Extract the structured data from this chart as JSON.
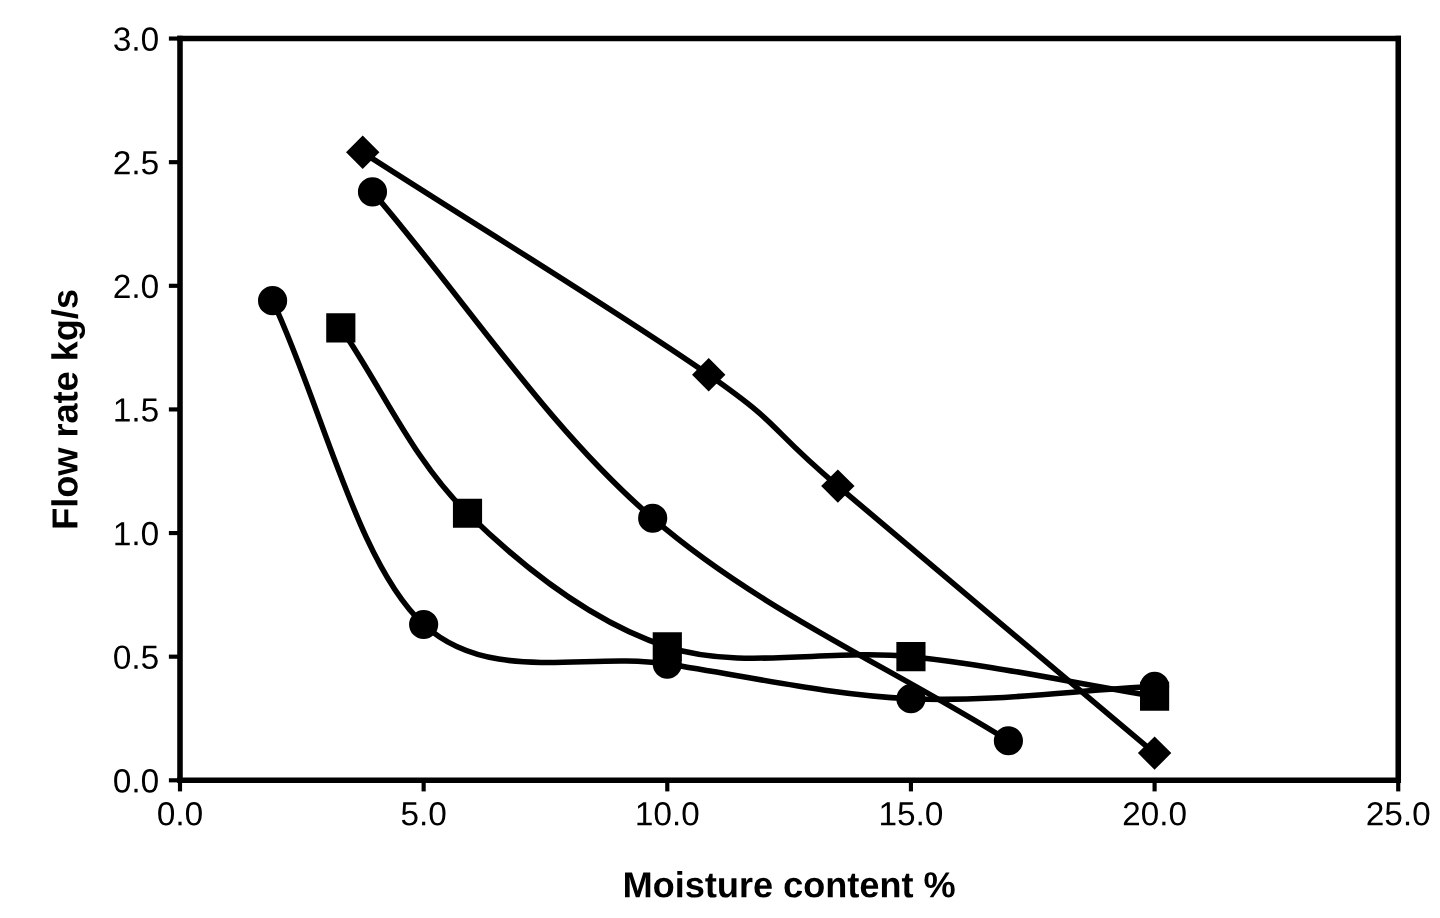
{
  "chart_data": {
    "type": "line",
    "xlabel": "Moisture content %",
    "ylabel": "Flow rate kg/s",
    "xlim": [
      0,
      25
    ],
    "ylim": [
      0,
      3
    ],
    "xticks": [
      {
        "value": 0,
        "label": "0.0"
      },
      {
        "value": 5,
        "label": "5.0"
      },
      {
        "value": 10,
        "label": "10.0"
      },
      {
        "value": 15,
        "label": "15.0"
      },
      {
        "value": 20,
        "label": "20.0"
      },
      {
        "value": 25,
        "label": "25.0"
      }
    ],
    "yticks": [
      {
        "value": 0,
        "label": "0.0"
      },
      {
        "value": 0.5,
        "label": "0.5"
      },
      {
        "value": 1,
        "label": "1.0"
      },
      {
        "value": 1.5,
        "label": "1.5"
      },
      {
        "value": 2,
        "label": "2.0"
      },
      {
        "value": 2.5,
        "label": "2.5"
      },
      {
        "value": 3,
        "label": "3.0"
      }
    ],
    "grid": false,
    "legend": false,
    "line_style": "solid",
    "series": [
      {
        "color": "#000000",
        "marker": "diamond",
        "x": [
          3.75,
          10.85,
          13.5,
          20.0
        ],
        "values": [
          2.54,
          1.64,
          1.19,
          0.11
        ]
      },
      {
        "color": "#000000",
        "marker": "circle",
        "x": [
          3.95,
          9.7,
          17.0
        ],
        "values": [
          2.38,
          1.06,
          0.16
        ]
      },
      {
        "color": "#000000",
        "marker": "square",
        "x": [
          3.3,
          5.9,
          10.0,
          15.0,
          20.0
        ],
        "values": [
          1.83,
          1.08,
          0.54,
          0.5,
          0.34
        ]
      },
      {
        "color": "#000000",
        "marker": "circle",
        "x": [
          1.9,
          5.0,
          10.0,
          15.0,
          20.0
        ],
        "values": [
          1.94,
          0.63,
          0.47,
          0.33,
          0.38
        ]
      }
    ]
  }
}
